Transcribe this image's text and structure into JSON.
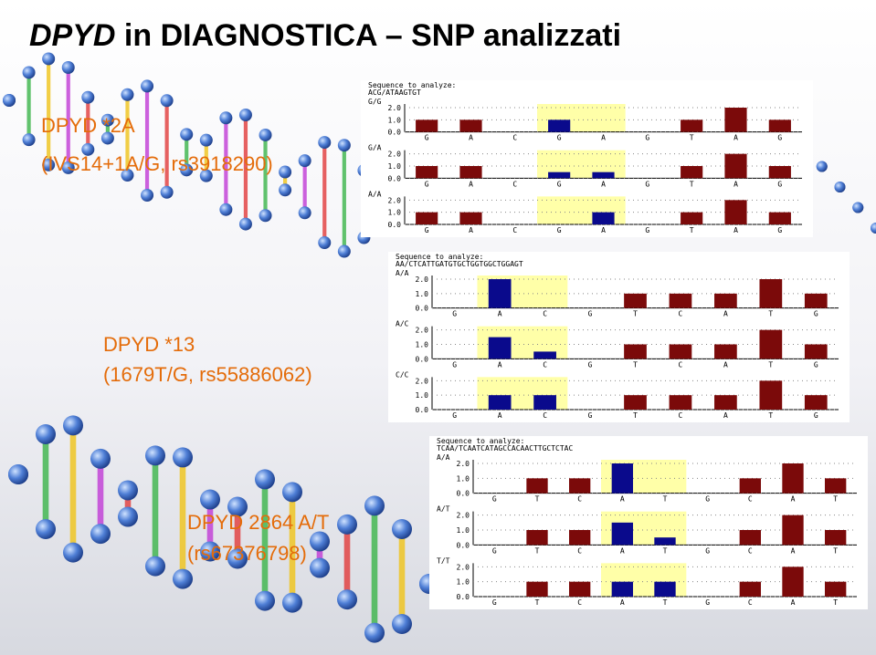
{
  "title": {
    "italic": "DPYD",
    "rest": " in DIAGNOSTICA – SNP analizzati"
  },
  "colors": {
    "wild": "#7b0a0a",
    "variant": "#0a0a8c",
    "highlight": "#ffffa8",
    "label": "#e46c0a"
  },
  "sections": [
    {
      "label": "DPYD *2A",
      "detail": "(IVS14+1A/G, rs3918290)",
      "panel": {
        "heading": "Sequence to analyze:",
        "sequence": "ACG/ATAAGTGT",
        "bases": [
          "G",
          "A",
          "C",
          "G",
          "A",
          "G",
          "T",
          "A",
          "G"
        ],
        "highlight": [
          3,
          4
        ],
        "variant_bases": [
          3,
          4
        ],
        "ylim": [
          0,
          2
        ],
        "yticks": [
          {
            "value": 0,
            "label": "0.0"
          },
          {
            "value": 1,
            "label": "1.0"
          },
          {
            "value": 2,
            "label": "2.0"
          }
        ],
        "plots": [
          {
            "genotype": "G/G",
            "values": [
              1,
              1,
              0,
              1,
              0,
              0,
              1,
              2,
              1
            ]
          },
          {
            "genotype": "G/A",
            "values": [
              1,
              1,
              0,
              0.5,
              0.5,
              0,
              1,
              2,
              1
            ]
          },
          {
            "genotype": "A/A",
            "values": [
              1,
              1,
              0,
              0,
              1,
              0,
              1,
              2,
              1
            ]
          }
        ]
      }
    },
    {
      "label": "DPYD *13",
      "detail": "(1679T/G, rs55886062)",
      "panel": {
        "heading": "Sequence to analyze:",
        "sequence": "AA/CTCATTGATGTGCTGGTGGCTGGAGT",
        "bases": [
          "G",
          "A",
          "C",
          "G",
          "T",
          "C",
          "A",
          "T",
          "G"
        ],
        "highlight": [
          1,
          2
        ],
        "variant_bases": [
          1,
          2
        ],
        "ylim": [
          0,
          2
        ],
        "yticks": [
          {
            "value": 0,
            "label": "0.0"
          },
          {
            "value": 1,
            "label": "1.0"
          },
          {
            "value": 2,
            "label": "2.0"
          }
        ],
        "plots": [
          {
            "genotype": "A/A",
            "values": [
              0,
              2,
              0,
              0,
              1,
              1,
              1,
              2,
              1
            ]
          },
          {
            "genotype": "A/C",
            "values": [
              0,
              1.5,
              0.5,
              0,
              1,
              1,
              1,
              2,
              1
            ]
          },
          {
            "genotype": "C/C",
            "values": [
              0,
              1,
              1,
              0,
              1,
              1,
              1,
              2,
              1
            ]
          }
        ]
      }
    },
    {
      "label": "DPYD 2864 A/T",
      "detail": "(rs67376798)",
      "panel": {
        "heading": "Sequence to analyze:",
        "sequence": "TCAA/TCAATCATAGCCACAACTTGCTCTAC",
        "bases": [
          "G",
          "T",
          "C",
          "A",
          "T",
          "G",
          "C",
          "A",
          "T"
        ],
        "highlight": [
          3,
          4
        ],
        "variant_bases": [
          3,
          4
        ],
        "ylim": [
          0,
          2
        ],
        "yticks": [
          {
            "value": 0,
            "label": "0.0"
          },
          {
            "value": 1,
            "label": "1.0"
          },
          {
            "value": 2,
            "label": "2.0"
          }
        ],
        "plots": [
          {
            "genotype": "A/A",
            "values": [
              0,
              1,
              1,
              2,
              0,
              0,
              1,
              2,
              1
            ]
          },
          {
            "genotype": "A/T",
            "values": [
              0,
              1,
              1,
              1.5,
              0.5,
              0,
              1,
              2,
              1
            ]
          },
          {
            "genotype": "T/T",
            "values": [
              0,
              1,
              1,
              1,
              1,
              0,
              1,
              2,
              1
            ]
          }
        ]
      }
    }
  ]
}
